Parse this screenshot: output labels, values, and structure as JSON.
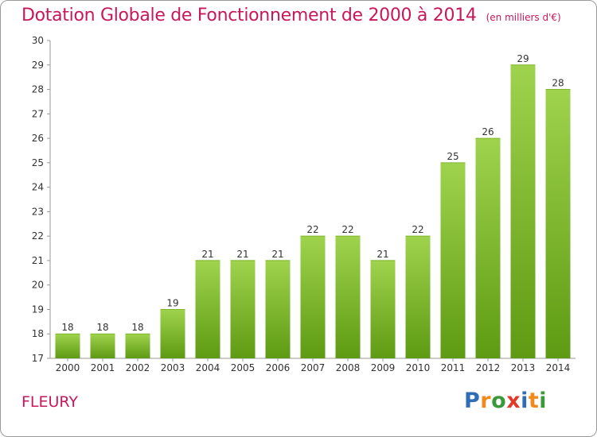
{
  "chart_data": {
    "type": "bar",
    "title": "Dotation Globale de Fonctionnement de 2000 à 2014",
    "subtitle": "(en milliers d'€)",
    "categories": [
      "2000",
      "2001",
      "2002",
      "2003",
      "2004",
      "2005",
      "2006",
      "2007",
      "2008",
      "2009",
      "2010",
      "2011",
      "2012",
      "2013",
      "2014"
    ],
    "values": [
      18,
      18,
      18,
      19,
      21,
      21,
      21,
      22,
      22,
      21,
      22,
      25,
      26,
      29,
      28
    ],
    "ylim": [
      17,
      30
    ],
    "yticks": [
      17,
      18,
      19,
      20,
      21,
      22,
      23,
      24,
      25,
      26,
      27,
      28,
      29,
      30
    ],
    "xlabel": "",
    "ylabel": "",
    "grid": false,
    "legend": "none",
    "data_labels": true,
    "bar_color_top": "#9fd34d",
    "bar_color_bottom": "#5e9a13"
  },
  "footer": {
    "city": "FLEURY",
    "logo": "Proxiti"
  },
  "colors": {
    "title": "#c8175b",
    "logo_letters": [
      "#2f6eb6",
      "#f08a1c",
      "#3a9a3a",
      "#e03a2a",
      "#2f6eb6",
      "#f08a1c",
      "#3a9a3a"
    ]
  }
}
